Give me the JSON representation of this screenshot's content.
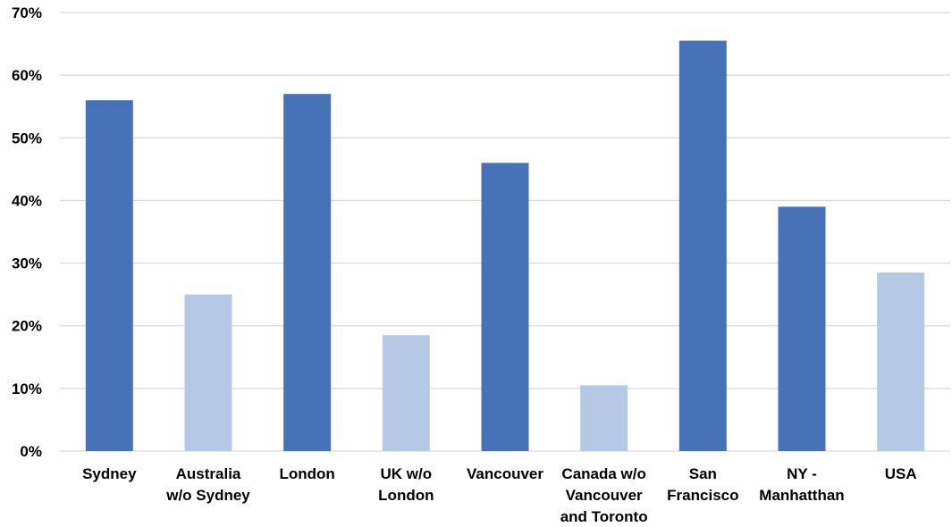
{
  "chart_data": {
    "type": "bar",
    "title": "",
    "xlabel": "",
    "ylabel": "",
    "categories": [
      "Sydney",
      "Australia w/o Sydney",
      "London",
      "UK w/o London",
      "Vancouver",
      "Canada w/o Vancouver and Toronto",
      "San Francisco",
      "NY - Manhatthan",
      "USA"
    ],
    "category_lines": [
      [
        "Sydney"
      ],
      [
        "Australia",
        "w/o Sydney"
      ],
      [
        "London"
      ],
      [
        "UK w/o",
        "London"
      ],
      [
        "Vancouver"
      ],
      [
        "Canada w/o",
        "Vancouver",
        "and Toronto"
      ],
      [
        "San",
        "Francisco"
      ],
      [
        "NY -",
        "Manhatthan"
      ],
      [
        "USA"
      ]
    ],
    "values": [
      0.56,
      0.25,
      0.57,
      0.185,
      0.46,
      0.105,
      0.655,
      0.39,
      0.285
    ],
    "bar_colors": [
      "#4872b8",
      "#b5c9e7",
      "#4872b8",
      "#b5c9e7",
      "#4872b8",
      "#b5c9e7",
      "#4872b8",
      "#4872b8",
      "#b5c9e7"
    ],
    "ylim": [
      0,
      0.7
    ],
    "yticks": [
      0,
      0.1,
      0.2,
      0.3,
      0.4,
      0.5,
      0.6,
      0.7
    ],
    "ytick_labels": [
      "0%",
      "10%",
      "20%",
      "30%",
      "40%",
      "50%",
      "60%",
      "70%"
    ],
    "grid": true,
    "legend": "none"
  }
}
